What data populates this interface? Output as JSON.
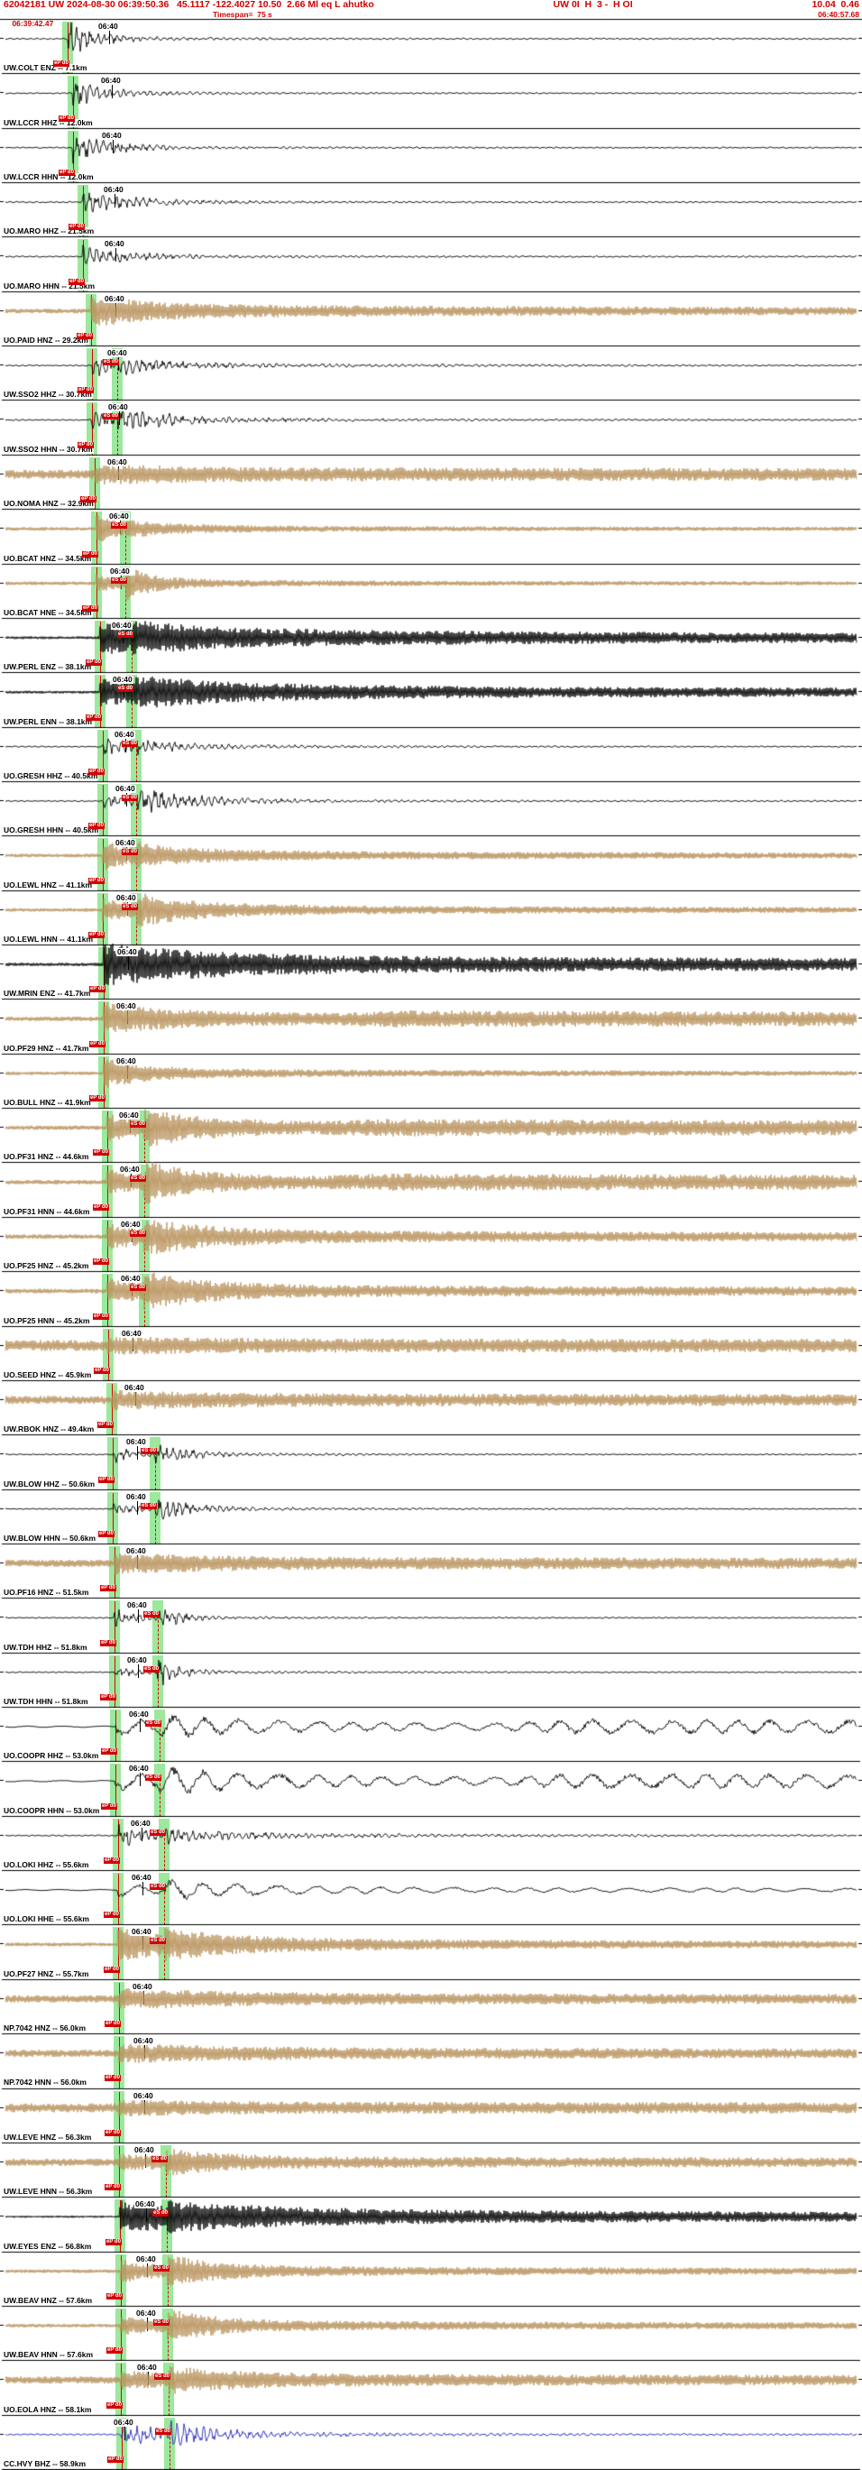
{
  "header": {
    "line1_left": "62042181 UW 2024-08-30 06:39:50.36   45.1117 -122.4027 10.50  2.66 Ml eq L ahutko",
    "line1_mid": "UW 0I  H  3 -  H OI",
    "line1_right": "10.04  0.46",
    "start_time": "06:39:42.47",
    "timespan": "Timespan=  75 s",
    "end_time": "06:40:57.68"
  },
  "minute_label": "06:40",
  "pick_labels": {
    "p": "eP d0",
    "s": "eS d0"
  },
  "colors": {
    "black": "#000000",
    "tan": "#b8915a",
    "blue": "#2424bb"
  },
  "traces": [
    {
      "l": "UW.COLT ENZ -- 7.1km",
      "c": "black",
      "st": "mf",
      "p": 75,
      "s": null,
      "m": 121,
      "w": {
        "pre": 0.8,
        "ap": 19,
        "tp": 25,
        "as": 0,
        "ts": 1,
        "co": 2.5,
        "ct": 120,
        "late": null
      }
    },
    {
      "l": "UW.LCCR HHZ -- 12.0km",
      "c": "black",
      "st": "mf",
      "p": 81,
      "s": null,
      "m": 124,
      "w": {
        "pre": 0.7,
        "ap": 12,
        "tp": 35,
        "as": 0,
        "ts": 1,
        "co": 2,
        "ct": 150,
        "late": null
      }
    },
    {
      "l": "UW.LCCR HHN -- 12.0km",
      "c": "black",
      "st": "mf",
      "p": 81,
      "s": null,
      "m": 125,
      "w": {
        "pre": 0.7,
        "ap": 13,
        "tp": 40,
        "as": 0,
        "ts": 1,
        "co": 2,
        "ct": 160,
        "late": null
      }
    },
    {
      "l": "UO.MARO HHZ -- 21.5km",
      "c": "black",
      "st": "mf",
      "p": 92,
      "s": null,
      "m": 127,
      "w": {
        "pre": 0.8,
        "ap": 11,
        "tp": 45,
        "as": 0,
        "ts": 1,
        "co": 2,
        "ct": 180,
        "late": null
      }
    },
    {
      "l": "UO.MARO HHN -- 21.5km",
      "c": "black",
      "st": "mf",
      "p": 92,
      "s": null,
      "m": 128,
      "w": {
        "pre": 0.8,
        "ap": 10,
        "tp": 40,
        "as": 0,
        "ts": 1,
        "co": 2,
        "ct": 170,
        "late": null
      }
    },
    {
      "l": "UO.PAID HNZ -- 29.2km",
      "c": "tan",
      "st": "hf",
      "p": 101,
      "s": null,
      "m": 128,
      "w": {
        "pre": 2.5,
        "ap": 12,
        "tp": 60,
        "as": 0,
        "ts": 1,
        "co": 5,
        "ct": 900,
        "late": null
      }
    },
    {
      "l": "UW.SSO2 HHZ -- 30.7km",
      "c": "black",
      "st": "mf",
      "p": 102,
      "s": 130,
      "m": 131,
      "w": {
        "pre": 0.7,
        "ap": 10,
        "tp": 25,
        "as": 5,
        "ts": 60,
        "co": 2.5,
        "ct": 350,
        "late": null
      }
    },
    {
      "l": "UW.SSO2 HHN -- 30.7km",
      "c": "black",
      "st": "mf",
      "p": 102,
      "s": 130,
      "m": 132,
      "w": {
        "pre": 0.7,
        "ap": 6,
        "tp": 25,
        "as": 11,
        "ts": 55,
        "co": 2.5,
        "ct": 300,
        "late": null
      }
    },
    {
      "l": "UO.NOMA HNZ -- 32.9km",
      "c": "tan",
      "st": "hf",
      "p": 105,
      "s": null,
      "m": 131,
      "w": {
        "pre": 5,
        "ap": 4,
        "tp": 100,
        "as": 0,
        "ts": 1,
        "co": 3,
        "ct": 2000,
        "late": null
      }
    },
    {
      "l": "UO.BCAT HNZ -- 34.5km",
      "c": "tan",
      "st": "hf",
      "p": 107,
      "s": 139,
      "m": 133,
      "w": {
        "pre": 2,
        "ap": 14,
        "tp": 18,
        "as": 5,
        "ts": 50,
        "co": 3,
        "ct": 300,
        "late": null
      }
    },
    {
      "l": "UO.BCAT HNE -- 34.5km",
      "c": "tan",
      "st": "hf",
      "p": 107,
      "s": 139,
      "m": 134,
      "w": {
        "pre": 2,
        "ap": 5,
        "tp": 25,
        "as": 14,
        "ts": 30,
        "co": 3,
        "ct": 300,
        "late": null
      }
    },
    {
      "l": "UW.PERL ENZ -- 38.1km",
      "c": "black",
      "st": "hf",
      "p": 111,
      "s": 146,
      "m": 136,
      "w": {
        "pre": 1.5,
        "ap": 12,
        "tp": 80,
        "as": 4,
        "ts": 200,
        "co": 7,
        "ct": 1500,
        "late": null
      }
    },
    {
      "l": "UW.PERL ENN -- 38.1km",
      "c": "black",
      "st": "hf",
      "p": 111,
      "s": 146,
      "m": 137,
      "w": {
        "pre": 1.5,
        "ap": 9,
        "tp": 60,
        "as": 8,
        "ts": 150,
        "co": 6,
        "ct": 1500,
        "late": null
      }
    },
    {
      "l": "UO.GRESH HHZ -- 40.5km",
      "c": "black",
      "st": "mf",
      "p": 114,
      "s": 151,
      "m": 139,
      "w": {
        "pre": 0.7,
        "ap": 10,
        "tp": 30,
        "as": 4,
        "ts": 70,
        "co": 2,
        "ct": 220,
        "late": null
      }
    },
    {
      "l": "UO.GRESH HHN -- 40.5km",
      "c": "black",
      "st": "mf",
      "p": 114,
      "s": 151,
      "m": 140,
      "w": {
        "pre": 0.7,
        "ap": 6,
        "tp": 30,
        "as": 11,
        "ts": 60,
        "co": 2.5,
        "ct": 250,
        "late": null
      }
    },
    {
      "l": "UO.LEWL HNZ -- 41.1km",
      "c": "tan",
      "st": "hf",
      "p": 114,
      "s": 151,
      "m": 140,
      "w": {
        "pre": 2,
        "ap": 11,
        "tp": 35,
        "as": 6,
        "ts": 80,
        "co": 4,
        "ct": 700,
        "late": null
      }
    },
    {
      "l": "UO.LEWL HNN -- 41.1km",
      "c": "tan",
      "st": "hf",
      "p": 114,
      "s": 151,
      "m": 141,
      "w": {
        "pre": 2,
        "ap": 7,
        "tp": 35,
        "as": 12,
        "ts": 70,
        "co": 4,
        "ct": 700,
        "late": null
      }
    },
    {
      "l": "UW.MRIN ENZ -- 41.7km",
      "c": "black",
      "st": "hf",
      "p": 115,
      "s": null,
      "m": 142,
      "w": {
        "pre": 1.8,
        "ap": 15,
        "tp": 120,
        "as": 0,
        "ts": 1,
        "co": 8,
        "ct": 2000,
        "late": null
      }
    },
    {
      "l": "UO.PF29 HNZ -- 41.7km",
      "c": "tan",
      "st": "hf",
      "p": 115,
      "s": null,
      "m": 141,
      "w": {
        "pre": 2.5,
        "ap": 11,
        "tp": 70,
        "as": 0,
        "ts": 1,
        "co": 5,
        "ct": 1200,
        "late": [
          360,
          3
        ]
      }
    },
    {
      "l": "UO.BULL HNZ -- 41.9km",
      "c": "tan",
      "st": "hf",
      "p": 115,
      "s": null,
      "m": 141,
      "w": {
        "pre": 2,
        "ap": 12,
        "tp": 45,
        "as": 0,
        "ts": 1,
        "co": 3.5,
        "ct": 500,
        "late": null
      }
    },
    {
      "l": "UO.PF31 HNZ -- 44.6km",
      "c": "tan",
      "st": "hf",
      "p": 119,
      "s": 160,
      "m": 144,
      "w": {
        "pre": 2.5,
        "ap": 8,
        "tp": 50,
        "as": 12,
        "ts": 70,
        "co": 5,
        "ct": 1500,
        "late": [
          350,
          3
        ]
      }
    },
    {
      "l": "UO.PF31 HNN -- 44.6km",
      "c": "tan",
      "st": "hf",
      "p": 119,
      "s": 160,
      "m": 145,
      "w": {
        "pre": 2.5,
        "ap": 7,
        "tp": 50,
        "as": 15,
        "ts": 55,
        "co": 5,
        "ct": 1500,
        "late": [
          350,
          3
        ]
      }
    },
    {
      "l": "UO.PF25 HNZ -- 45.2km",
      "c": "tan",
      "st": "hf",
      "p": 119,
      "s": 160,
      "m": 146,
      "w": {
        "pre": 2.5,
        "ap": 7,
        "tp": 60,
        "as": 11,
        "ts": 70,
        "co": 5,
        "ct": 1200,
        "late": null
      }
    },
    {
      "l": "UO.PF25 HNN -- 45.2km",
      "c": "tan",
      "st": "hf",
      "p": 119,
      "s": 160,
      "m": 146,
      "w": {
        "pre": 2.5,
        "ap": 6,
        "tp": 60,
        "as": 13,
        "ts": 60,
        "co": 5,
        "ct": 1200,
        "late": null
      }
    },
    {
      "l": "UO.SEED HNZ -- 45.9km",
      "c": "tan",
      "st": "hf",
      "p": 120,
      "s": null,
      "m": 147,
      "w": {
        "pre": 6,
        "ap": 3,
        "tp": 80,
        "as": 0,
        "ts": 1,
        "co": 2,
        "ct": 2500,
        "late": null
      }
    },
    {
      "l": "UW.RBOK HNZ -- 49.4km",
      "c": "tan",
      "st": "hf",
      "p": 124,
      "s": null,
      "m": 150,
      "w": {
        "pre": 4.5,
        "ap": 4,
        "tp": 100,
        "as": 0,
        "ts": 1,
        "co": 3,
        "ct": 2000,
        "late": null
      }
    },
    {
      "l": "UW.BLOW HHZ -- 50.6km",
      "c": "black",
      "st": "mf",
      "p": 125,
      "s": 172,
      "m": 152,
      "w": {
        "pre": 0.6,
        "ap": 8,
        "tp": 20,
        "as": 10,
        "ts": 35,
        "co": 2,
        "ct": 200,
        "late": null
      }
    },
    {
      "l": "UW.BLOW HHN -- 50.6km",
      "c": "black",
      "st": "mf",
      "p": 125,
      "s": 172,
      "m": 152,
      "w": {
        "pre": 0.6,
        "ap": 5,
        "tp": 20,
        "as": 12,
        "ts": 40,
        "co": 2,
        "ct": 220,
        "late": null
      }
    },
    {
      "l": "UO.PF16 HNZ -- 51.5km",
      "c": "tan",
      "st": "hf",
      "p": 127,
      "s": null,
      "m": 152,
      "w": {
        "pre": 4,
        "ap": 5,
        "tp": 90,
        "as": 0,
        "ts": 1,
        "co": 3.5,
        "ct": 1500,
        "late": null
      }
    },
    {
      "l": "UW.TDH HHZ -- 51.8km",
      "c": "black",
      "st": "mf",
      "p": 127,
      "s": 175,
      "m": 153,
      "w": {
        "pre": 0.6,
        "ap": 8,
        "tp": 18,
        "as": 14,
        "ts": 18,
        "co": 2,
        "ct": 180,
        "late": null
      }
    },
    {
      "l": "UW.TDH HHN -- 51.8km",
      "c": "black",
      "st": "mf",
      "p": 127,
      "s": 175,
      "m": 153,
      "w": {
        "pre": 0.6,
        "ap": 4,
        "tp": 18,
        "as": 15,
        "ts": 20,
        "co": 2,
        "ct": 200,
        "late": null
      }
    },
    {
      "l": "UO.COOPR HHZ -- 53.0km",
      "c": "black",
      "st": "lf",
      "p": 128,
      "s": 177,
      "m": 155,
      "w": {
        "pre": 0.8,
        "ap": 6,
        "tp": 60,
        "as": 7,
        "ts": 120,
        "co": 4,
        "ct": 2500,
        "late": [
          550,
          4
        ]
      }
    },
    {
      "l": "UO.COOPR HHN -- 53.0km",
      "c": "black",
      "st": "lf",
      "p": 128,
      "s": 177,
      "m": 155,
      "w": {
        "pre": 0.8,
        "ap": 5,
        "tp": 60,
        "as": 9,
        "ts": 120,
        "co": 4.5,
        "ct": 2500,
        "late": [
          550,
          4
        ]
      }
    },
    {
      "l": "UO.LOKI HHZ -- 55.6km",
      "c": "black",
      "st": "mf",
      "p": 131,
      "s": 182,
      "m": 157,
      "w": {
        "pre": 0.7,
        "ap": 10,
        "tp": 30,
        "as": 5,
        "ts": 80,
        "co": 2.5,
        "ct": 400,
        "late": null
      }
    },
    {
      "l": "UO.LOKI HHE -- 55.6km",
      "c": "black",
      "st": "lf",
      "p": 131,
      "s": 182,
      "m": 158,
      "w": {
        "pre": 0.7,
        "ap": 4,
        "tp": 40,
        "as": 8,
        "ts": 100,
        "co": 3,
        "ct": 1200,
        "late": null
      }
    },
    {
      "l": "UO.PF27 HNZ -- 55.7km",
      "c": "tan",
      "st": "hf",
      "p": 131,
      "s": 182,
      "m": 158,
      "w": {
        "pre": 2,
        "ap": 13,
        "tp": 60,
        "as": 7,
        "ts": 100,
        "co": 5,
        "ct": 900,
        "late": null
      }
    },
    {
      "l": "NP.7042 HNZ -- 56.0km",
      "c": "tan",
      "st": "hf",
      "p": 132,
      "s": null,
      "m": 159,
      "w": {
        "pre": 4,
        "ap": 6,
        "tp": 120,
        "as": 0,
        "ts": 1,
        "co": 2.5,
        "ct": 1500,
        "late": null
      }
    },
    {
      "l": "NP.7042 HNN -- 56.0km",
      "c": "tan",
      "st": "hf",
      "p": 132,
      "s": null,
      "m": 160,
      "w": {
        "pre": 4,
        "ap": 5,
        "tp": 120,
        "as": 0,
        "ts": 1,
        "co": 2.5,
        "ct": 1500,
        "late": null
      }
    },
    {
      "l": "UW.LEVE HNZ -- 56.3km",
      "c": "tan",
      "st": "hf",
      "p": 132,
      "s": null,
      "m": 160,
      "w": {
        "pre": 5,
        "ap": 3,
        "tp": 80,
        "as": 0,
        "ts": 1,
        "co": 2,
        "ct": 2000,
        "late": null
      }
    },
    {
      "l": "UW.LEVE HNN -- 56.3km",
      "c": "tan",
      "st": "hf",
      "p": 132,
      "s": 184,
      "m": 161,
      "w": {
        "pre": 4,
        "ap": 3,
        "tp": 60,
        "as": 8,
        "ts": 70,
        "co": 2.5,
        "ct": 1500,
        "late": null
      }
    },
    {
      "l": "UW.EYES ENZ -- 56.8km",
      "c": "black",
      "st": "hf",
      "p": 133,
      "s": 185,
      "m": 162,
      "w": {
        "pre": 1.2,
        "ap": 11,
        "tp": 100,
        "as": 5,
        "ts": 200,
        "co": 6.5,
        "ct": 1800,
        "late": null
      }
    },
    {
      "l": "UW.BEAV HNZ -- 57.6km",
      "c": "tan",
      "st": "hf",
      "p": 134,
      "s": 186,
      "m": 163,
      "w": {
        "pre": 2,
        "ap": 7,
        "tp": 40,
        "as": 12,
        "ts": 55,
        "co": 4,
        "ct": 900,
        "late": null
      }
    },
    {
      "l": "UW.BEAV HNN -- 57.6km",
      "c": "tan",
      "st": "hf",
      "p": 134,
      "s": 186,
      "m": 163,
      "w": {
        "pre": 2,
        "ap": 5,
        "tp": 40,
        "as": 13,
        "ts": 50,
        "co": 4,
        "ct": 900,
        "late": null
      }
    },
    {
      "l": "UO.EOLA HNZ -- 58.1km",
      "c": "tan",
      "st": "hf",
      "p": 134,
      "s": 187,
      "m": 164,
      "w": {
        "pre": 4,
        "ap": 4,
        "tp": 60,
        "as": 8,
        "ts": 80,
        "co": 3,
        "ct": 1500,
        "late": null
      }
    },
    {
      "l": "CC.HVY BHZ -- 58.9km",
      "c": "blue",
      "st": "mf",
      "p": 135,
      "s": 188,
      "m": 138,
      "w": {
        "pre": 0.9,
        "ap": 8,
        "tp": 60,
        "as": 10,
        "ts": 40,
        "co": 2.5,
        "ct": 300,
        "late": null
      }
    }
  ]
}
